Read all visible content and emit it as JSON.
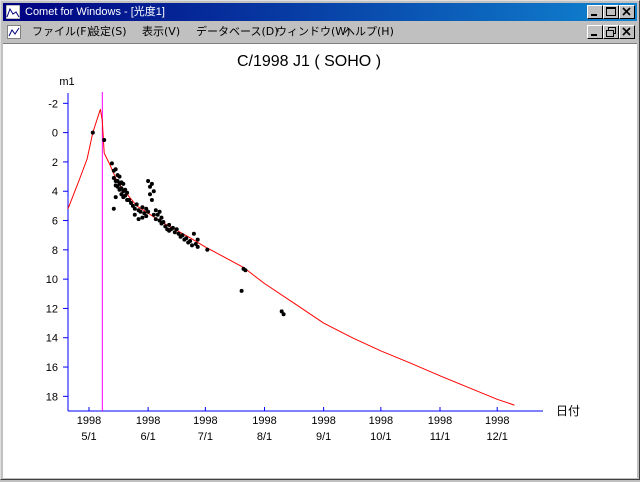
{
  "window": {
    "title": "Comet for Windows - [光度1]"
  },
  "menubar": {
    "items": [
      {
        "label": "ファイル(F)"
      },
      {
        "label": "設定(S)"
      },
      {
        "label": "表示(V)"
      },
      {
        "label": "データベース(D)"
      },
      {
        "label": "ウィンドウ(W)"
      },
      {
        "label": "ヘルプ(H)"
      }
    ]
  },
  "colors": {
    "titlebar": "#000080",
    "curve": "#ff0000",
    "marker_line": "#ff00ff",
    "axis": "#0000ff",
    "points": "#000000"
  },
  "chart_data": {
    "type": "scatter",
    "title": "C/1998 J1 ( SOHO )",
    "ylabel": "m1",
    "xlabel": "日付",
    "y_inverted": true,
    "ylim": [
      -2.5,
      19
    ],
    "y_ticks": [
      "-2",
      "0",
      "2",
      "4",
      "6",
      "8",
      "10",
      "12",
      "14",
      "16",
      "18"
    ],
    "xlim": [
      "1998-04-20",
      "1998-12-25"
    ],
    "x_ticks": [
      {
        "date": "1998-05-01",
        "year": "1998",
        "label": "5/1"
      },
      {
        "date": "1998-06-01",
        "year": "1998",
        "label": "6/1"
      },
      {
        "date": "1998-07-01",
        "year": "1998",
        "label": "7/1"
      },
      {
        "date": "1998-08-01",
        "year": "1998",
        "label": "8/1"
      },
      {
        "date": "1998-09-01",
        "year": "1998",
        "label": "9/1"
      },
      {
        "date": "1998-10-01",
        "year": "1998",
        "label": "10/1"
      },
      {
        "date": "1998-11-01",
        "year": "1998",
        "label": "11/1"
      },
      {
        "date": "1998-12-01",
        "year": "1998",
        "label": "12/1"
      }
    ],
    "vertical_marker_date": "1998-05-08",
    "series": [
      {
        "kind": "line",
        "points": [
          [
            "1998-04-20",
            5.2
          ],
          [
            "1998-04-23",
            4.2
          ],
          [
            "1998-04-26",
            3.2
          ],
          [
            "1998-04-30",
            1.8
          ],
          [
            "1998-05-03",
            0.0
          ],
          [
            "1998-05-05",
            -0.8
          ],
          [
            "1998-05-07",
            -1.6
          ],
          [
            "1998-05-08",
            -0.8
          ],
          [
            "1998-05-09",
            1.4
          ],
          [
            "1998-05-12",
            2.2
          ],
          [
            "1998-05-16",
            3.4
          ],
          [
            "1998-05-21",
            4.2
          ],
          [
            "1998-05-26",
            5.0
          ],
          [
            "1998-06-01",
            5.5
          ],
          [
            "1998-06-08",
            6.1
          ],
          [
            "1998-06-15",
            6.6
          ],
          [
            "1998-06-22",
            7.1
          ],
          [
            "1998-07-01",
            7.8
          ],
          [
            "1998-07-11",
            8.5
          ],
          [
            "1998-07-21",
            9.2
          ],
          [
            "1998-08-01",
            10.3
          ],
          [
            "1998-08-16",
            11.6
          ],
          [
            "1998-09-01",
            13.0
          ],
          [
            "1998-09-16",
            14.0
          ],
          [
            "1998-10-01",
            14.9
          ],
          [
            "1998-10-16",
            15.7
          ],
          [
            "1998-11-01",
            16.6
          ],
          [
            "1998-11-16",
            17.4
          ],
          [
            "1998-12-01",
            18.2
          ],
          [
            "1998-12-10",
            18.6
          ]
        ]
      },
      {
        "kind": "points",
        "points": [
          [
            "1998-05-03",
            0.0
          ],
          [
            "1998-05-09",
            0.5
          ],
          [
            "1998-05-13",
            2.1
          ],
          [
            "1998-05-14",
            2.6
          ],
          [
            "1998-05-14",
            3.1
          ],
          [
            "1998-05-15",
            2.5
          ],
          [
            "1998-05-15",
            3.3
          ],
          [
            "1998-05-15",
            3.6
          ],
          [
            "1998-05-16",
            2.9
          ],
          [
            "1998-05-16",
            3.3
          ],
          [
            "1998-05-16",
            3.7
          ],
          [
            "1998-05-17",
            3.0
          ],
          [
            "1998-05-17",
            3.5
          ],
          [
            "1998-05-17",
            3.9
          ],
          [
            "1998-05-18",
            3.4
          ],
          [
            "1998-05-18",
            3.8
          ],
          [
            "1998-05-18",
            4.2
          ],
          [
            "1998-05-19",
            3.5
          ],
          [
            "1998-05-19",
            4.0
          ],
          [
            "1998-05-19",
            4.4
          ],
          [
            "1998-05-20",
            3.9
          ],
          [
            "1998-05-20",
            4.3
          ],
          [
            "1998-05-21",
            4.1
          ],
          [
            "1998-05-21",
            4.6
          ],
          [
            "1998-05-14",
            5.2
          ],
          [
            "1998-05-15",
            4.4
          ],
          [
            "1998-05-22",
            4.6
          ],
          [
            "1998-05-23",
            4.8
          ],
          [
            "1998-05-24",
            5.0
          ],
          [
            "1998-05-25",
            5.2
          ],
          [
            "1998-05-25",
            5.6
          ],
          [
            "1998-05-26",
            4.9
          ],
          [
            "1998-05-27",
            5.3
          ],
          [
            "1998-05-27",
            5.9
          ],
          [
            "1998-05-28",
            5.4
          ],
          [
            "1998-05-29",
            5.1
          ],
          [
            "1998-05-29",
            5.8
          ],
          [
            "1998-05-30",
            5.5
          ],
          [
            "1998-05-31",
            5.2
          ],
          [
            "1998-05-31",
            5.7
          ],
          [
            "1998-06-01",
            5.4
          ],
          [
            "1998-06-01",
            3.3
          ],
          [
            "1998-06-02",
            3.7
          ],
          [
            "1998-06-02",
            4.2
          ],
          [
            "1998-06-03",
            3.5
          ],
          [
            "1998-06-03",
            4.6
          ],
          [
            "1998-06-04",
            4.0
          ],
          [
            "1998-06-04",
            5.6
          ],
          [
            "1998-06-05",
            5.3
          ],
          [
            "1998-06-05",
            5.9
          ],
          [
            "1998-06-06",
            5.6
          ],
          [
            "1998-06-07",
            6.0
          ],
          [
            "1998-06-07",
            5.4
          ],
          [
            "1998-06-08",
            6.2
          ],
          [
            "1998-06-08",
            5.8
          ],
          [
            "1998-06-09",
            6.1
          ],
          [
            "1998-06-10",
            6.4
          ],
          [
            "1998-06-11",
            6.6
          ],
          [
            "1998-06-12",
            6.3
          ],
          [
            "1998-06-12",
            6.7
          ],
          [
            "1998-06-13",
            6.6
          ],
          [
            "1998-06-14",
            6.5
          ],
          [
            "1998-06-15",
            6.8
          ],
          [
            "1998-06-16",
            6.6
          ],
          [
            "1998-06-17",
            6.9
          ],
          [
            "1998-06-18",
            7.1
          ],
          [
            "1998-06-19",
            7.0
          ],
          [
            "1998-06-20",
            7.3
          ],
          [
            "1998-06-21",
            7.2
          ],
          [
            "1998-06-22",
            7.5
          ],
          [
            "1998-06-23",
            7.4
          ],
          [
            "1998-06-24",
            7.7
          ],
          [
            "1998-06-25",
            6.9
          ],
          [
            "1998-06-26",
            7.6
          ],
          [
            "1998-06-27",
            7.3
          ],
          [
            "1998-06-27",
            7.8
          ],
          [
            "1998-07-02",
            8.0
          ],
          [
            "1998-07-20",
            10.8
          ],
          [
            "1998-07-21",
            9.3
          ],
          [
            "1998-07-22",
            9.4
          ],
          [
            "1998-08-10",
            12.2
          ],
          [
            "1998-08-11",
            12.4
          ]
        ]
      }
    ]
  }
}
